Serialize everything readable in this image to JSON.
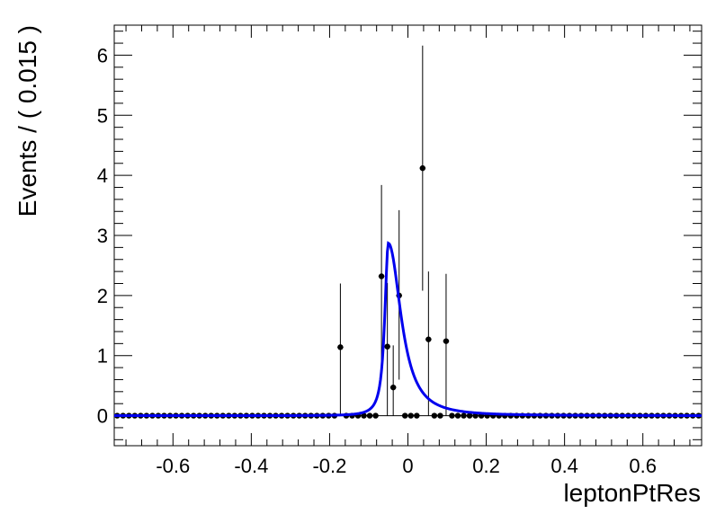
{
  "chart_data": {
    "type": "scatter",
    "xlabel": "leptonPtRes",
    "ylabel": "Events / ( 0.015 )",
    "xlim": [
      -0.75,
      0.75
    ],
    "ylim": [
      -0.5,
      6.5
    ],
    "x_ticks": [
      -0.6,
      -0.4,
      -0.2,
      0,
      0.2,
      0.4,
      0.6
    ],
    "x_tick_labels": [
      "-0.6",
      "-0.4",
      "-0.2",
      "0",
      "0.2",
      "0.4",
      "0.6"
    ],
    "y_ticks": [
      0,
      1,
      2,
      3,
      4,
      5,
      6
    ],
    "y_tick_labels": [
      "0",
      "1",
      "2",
      "3",
      "4",
      "5",
      "6"
    ],
    "grid": false,
    "bin_width": 0.015,
    "series": [
      {
        "kind": "points-with-error-bars",
        "color": "#000000",
        "nonzero_points": [
          {
            "x": -0.1725,
            "y": 1.14,
            "err_low": 1.14,
            "err_high": 1.06
          },
          {
            "x": -0.0675,
            "y": 2.32,
            "err_low": 1.52,
            "err_high": 1.52
          },
          {
            "x": -0.0525,
            "y": 1.15,
            "err_low": 1.15,
            "err_high": 1.06
          },
          {
            "x": -0.0375,
            "y": 0.47,
            "err_low": 0.47,
            "err_high": 0.7
          },
          {
            "x": -0.0225,
            "y": 2.0,
            "err_low": 1.4,
            "err_high": 1.42
          },
          {
            "x": 0.0375,
            "y": 4.12,
            "err_low": 2.04,
            "err_high": 2.04
          },
          {
            "x": 0.0525,
            "y": 1.27,
            "err_low": 1.27,
            "err_high": 1.13
          },
          {
            "x": 0.0975,
            "y": 1.24,
            "err_low": 1.24,
            "err_high": 1.12
          }
        ]
      },
      {
        "kind": "fit-curve",
        "color": "#0000ee",
        "peak_x": -0.05,
        "peak_y": 2.87,
        "sigma_left": 0.015,
        "sigma_right": 0.045
      }
    ]
  }
}
